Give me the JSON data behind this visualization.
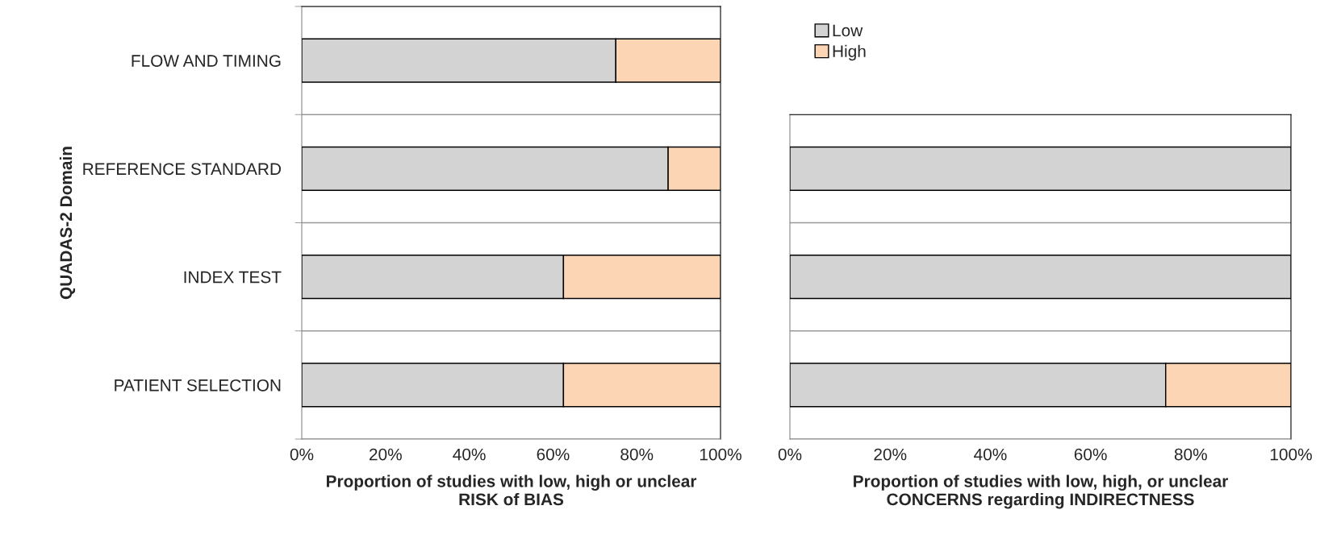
{
  "chart_data": [
    {
      "type": "bar",
      "orientation": "horizontal",
      "stacked": true,
      "ylabel": "QUADAS-2 Domain",
      "xlabel": "Proportion of studies with low, high or unclear\nRISK of BIAS",
      "categories": [
        "FLOW AND TIMING",
        "REFERENCE STANDARD",
        "INDEX TEST",
        "PATIENT SELECTION"
      ],
      "series": [
        {
          "color": "#d3d3d3",
          "values": [
            75,
            87.5,
            62.5,
            62.5
          ]
        },
        {
          "color": "#fcd5b5",
          "values": [
            25,
            12.5,
            37.5,
            37.5
          ]
        }
      ],
      "xlim": [
        0,
        100
      ],
      "xticks": [
        {
          "value": 0,
          "label": "0%"
        },
        {
          "value": 20,
          "label": "20%"
        },
        {
          "value": 40,
          "label": "40%"
        },
        {
          "value": 60,
          "label": "60%"
        },
        {
          "value": 80,
          "label": "80%"
        },
        {
          "value": 100,
          "label": "100%"
        }
      ],
      "grid": "y"
    },
    {
      "type": "bar",
      "orientation": "horizontal",
      "stacked": true,
      "xlabel": "Proportion of studies with low, high, or unclear\nCONCERNS regarding INDIRECTNESS",
      "categories": [
        null,
        null,
        null
      ],
      "series": [
        {
          "name": "Low",
          "color": "#d3d3d3",
          "values": [
            100,
            100,
            75
          ]
        },
        {
          "name": "High",
          "color": "#fcd5b5",
          "values": [
            null,
            null,
            25
          ]
        }
      ],
      "xlim": [
        0,
        100
      ],
      "xticks": [
        {
          "value": 0,
          "label": "0%"
        },
        {
          "value": 20,
          "label": "20%"
        },
        {
          "value": 40,
          "label": "40%"
        },
        {
          "value": 60,
          "label": "60%"
        },
        {
          "value": 80,
          "label": "80%"
        },
        {
          "value": 100,
          "label": "100%"
        }
      ],
      "grid": "y",
      "legend": "top left"
    }
  ]
}
